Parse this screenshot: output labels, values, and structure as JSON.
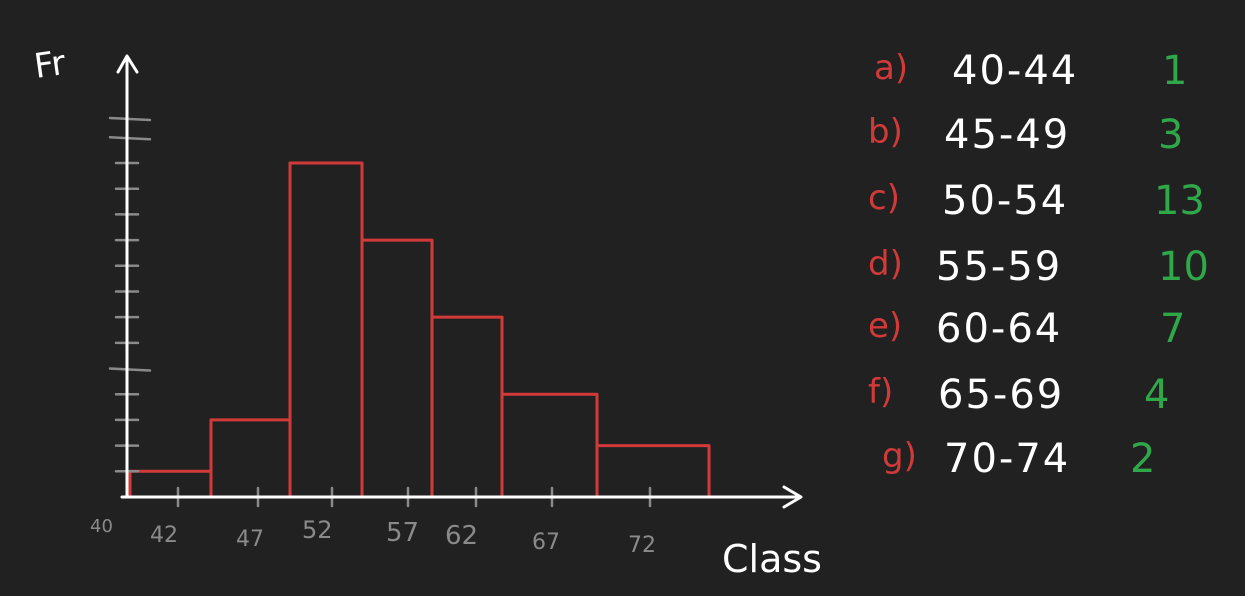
{
  "chart_data": {
    "type": "bar",
    "y_axis_label": "Fr",
    "x_axis_label": "Class",
    "x_tick_labels": [
      "40",
      "42",
      "47",
      "52",
      "57",
      "62",
      "67",
      "72"
    ],
    "bins": [
      {
        "from": 40,
        "to": 44,
        "frequency": 1
      },
      {
        "from": 45,
        "to": 49,
        "frequency": 3
      },
      {
        "from": 50,
        "to": 54,
        "frequency": 13
      },
      {
        "from": 55,
        "to": 59,
        "frequency": 10
      },
      {
        "from": 60,
        "to": 64,
        "frequency": 7
      },
      {
        "from": 65,
        "to": 69,
        "frequency": 4
      },
      {
        "from": 70,
        "to": 74,
        "frequency": 2
      }
    ],
    "ylim": [
      0,
      15
    ],
    "grid": false
  },
  "table": [
    {
      "letter": "a)",
      "range": "40-44",
      "freq": "1"
    },
    {
      "letter": "b)",
      "range": "45-49",
      "freq": "3"
    },
    {
      "letter": "c)",
      "range": "50-54",
      "freq": "13"
    },
    {
      "letter": "d)",
      "range": "55-59",
      "freq": "10"
    },
    {
      "letter": "e)",
      "range": "60-64",
      "freq": "7"
    },
    {
      "letter": "f)",
      "range": "65-69",
      "freq": "4"
    },
    {
      "letter": "g)",
      "range": "70-74",
      "freq": "2"
    }
  ],
  "colors": {
    "background": "#212121",
    "axis": "#ffffff",
    "tick": "#8a8a8a",
    "bars": "#d23a3a",
    "letters": "#d23a3a",
    "ranges": "#ffffff",
    "frequencies": "#2fa84a"
  }
}
